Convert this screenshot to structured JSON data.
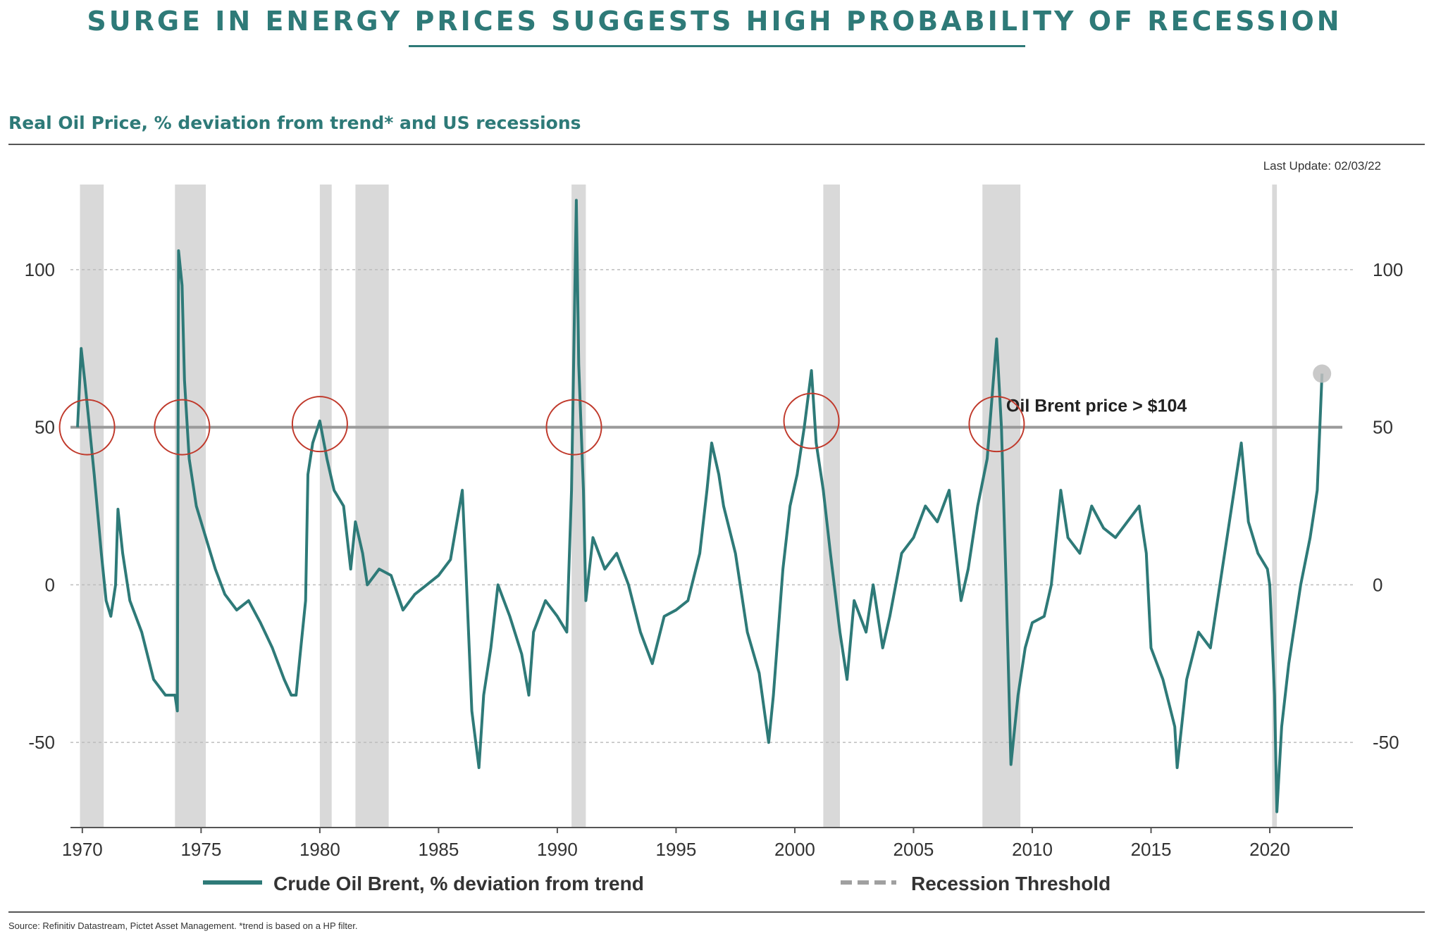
{
  "header": {
    "title": "SURGE IN ENERGY PRICES SUGGESTS HIGH PROBABILITY OF RECESSION",
    "subtitle": "Real Oil Price, % deviation from trend* and US recessions",
    "last_update": "Last Update: 02/03/22"
  },
  "footer": {
    "source": "Source: Refinitiv Datastream, Pictet Asset Management. *trend is based on a HP filter."
  },
  "colors": {
    "series": "#2e7a78",
    "recession_band": "#d9d9d9",
    "threshold": "#9a9a9a",
    "circle": "#c0392b",
    "grid": "#bdbdbd"
  },
  "chart_data": {
    "type": "line",
    "title": "Real Oil Price, % deviation from trend* and US recessions",
    "xlabel": "",
    "ylabel": "",
    "xlim": [
      1969.5,
      2023.5
    ],
    "ylim": [
      -77,
      127
    ],
    "x_ticks": [
      1970,
      1975,
      1980,
      1985,
      1990,
      1995,
      2000,
      2005,
      2010,
      2015,
      2020
    ],
    "y_ticks": [
      100,
      50,
      0,
      -50
    ],
    "gridlines": [
      100,
      0,
      -50
    ],
    "threshold": {
      "value": 50,
      "label": "Oil Brent price > $104"
    },
    "legend": {
      "placement": "bottom",
      "series_label": "Crude Oil Brent, % deviation from trend",
      "threshold_label": "Recession Threshold"
    },
    "recessions": [
      [
        1969.9,
        1970.9
      ],
      [
        1973.9,
        1975.2
      ],
      [
        1980.0,
        1980.5
      ],
      [
        1981.5,
        1982.9
      ],
      [
        1990.6,
        1991.2
      ],
      [
        2001.2,
        2001.9
      ],
      [
        2007.9,
        2009.5
      ],
      [
        2020.1,
        2020.3
      ]
    ],
    "circles": [
      {
        "x": 1970.2,
        "y": 50
      },
      {
        "x": 1974.2,
        "y": 50
      },
      {
        "x": 1980.0,
        "y": 51
      },
      {
        "x": 1990.7,
        "y": 50
      },
      {
        "x": 2000.7,
        "y": 52
      },
      {
        "x": 2008.5,
        "y": 51
      }
    ],
    "end_marker": {
      "x": 2022.2,
      "y": 67
    },
    "series": [
      {
        "name": "Crude Oil Brent, % deviation from trend",
        "points": [
          [
            1969.8,
            50
          ],
          [
            1969.95,
            75
          ],
          [
            1970.1,
            65
          ],
          [
            1970.3,
            50
          ],
          [
            1970.5,
            35
          ],
          [
            1970.8,
            10
          ],
          [
            1971.0,
            -5
          ],
          [
            1971.2,
            -10
          ],
          [
            1971.4,
            0
          ],
          [
            1971.5,
            24
          ],
          [
            1971.7,
            10
          ],
          [
            1972.0,
            -5
          ],
          [
            1972.5,
            -15
          ],
          [
            1973.0,
            -30
          ],
          [
            1973.5,
            -35
          ],
          [
            1973.9,
            -35
          ],
          [
            1974.0,
            -40
          ],
          [
            1974.05,
            106
          ],
          [
            1974.2,
            95
          ],
          [
            1974.3,
            65
          ],
          [
            1974.5,
            40
          ],
          [
            1974.8,
            25
          ],
          [
            1975.2,
            15
          ],
          [
            1975.6,
            5
          ],
          [
            1976.0,
            -3
          ],
          [
            1976.5,
            -8
          ],
          [
            1977.0,
            -5
          ],
          [
            1977.5,
            -12
          ],
          [
            1978.0,
            -20
          ],
          [
            1978.5,
            -30
          ],
          [
            1978.8,
            -35
          ],
          [
            1979.0,
            -35
          ],
          [
            1979.2,
            -20
          ],
          [
            1979.4,
            -5
          ],
          [
            1979.5,
            35
          ],
          [
            1979.7,
            45
          ],
          [
            1980.0,
            52
          ],
          [
            1980.3,
            40
          ],
          [
            1980.6,
            30
          ],
          [
            1981.0,
            25
          ],
          [
            1981.3,
            5
          ],
          [
            1981.5,
            20
          ],
          [
            1981.8,
            10
          ],
          [
            1982.0,
            0
          ],
          [
            1982.5,
            5
          ],
          [
            1983.0,
            3
          ],
          [
            1983.5,
            -8
          ],
          [
            1984.0,
            -3
          ],
          [
            1984.5,
            0
          ],
          [
            1985.0,
            3
          ],
          [
            1985.5,
            8
          ],
          [
            1986.0,
            30
          ],
          [
            1986.15,
            5
          ],
          [
            1986.4,
            -40
          ],
          [
            1986.7,
            -58
          ],
          [
            1986.9,
            -35
          ],
          [
            1987.2,
            -20
          ],
          [
            1987.5,
            0
          ],
          [
            1988.0,
            -10
          ],
          [
            1988.5,
            -22
          ],
          [
            1988.8,
            -35
          ],
          [
            1989.0,
            -15
          ],
          [
            1989.5,
            -5
          ],
          [
            1990.0,
            -10
          ],
          [
            1990.4,
            -15
          ],
          [
            1990.6,
            30
          ],
          [
            1990.8,
            122
          ],
          [
            1990.9,
            70
          ],
          [
            1991.1,
            30
          ],
          [
            1991.2,
            -5
          ],
          [
            1991.5,
            15
          ],
          [
            1992.0,
            5
          ],
          [
            1992.5,
            10
          ],
          [
            1993.0,
            0
          ],
          [
            1993.5,
            -15
          ],
          [
            1994.0,
            -25
          ],
          [
            1994.5,
            -10
          ],
          [
            1995.0,
            -8
          ],
          [
            1995.5,
            -5
          ],
          [
            1996.0,
            10
          ],
          [
            1996.3,
            30
          ],
          [
            1996.5,
            45
          ],
          [
            1996.8,
            35
          ],
          [
            1997.0,
            25
          ],
          [
            1997.5,
            10
          ],
          [
            1998.0,
            -15
          ],
          [
            1998.5,
            -28
          ],
          [
            1998.9,
            -50
          ],
          [
            1999.1,
            -35
          ],
          [
            1999.5,
            5
          ],
          [
            1999.8,
            25
          ],
          [
            2000.1,
            35
          ],
          [
            2000.4,
            50
          ],
          [
            2000.7,
            68
          ],
          [
            2000.9,
            45
          ],
          [
            2001.2,
            30
          ],
          [
            2001.5,
            10
          ],
          [
            2001.9,
            -15
          ],
          [
            2002.2,
            -30
          ],
          [
            2002.5,
            -5
          ],
          [
            2003.0,
            -15
          ],
          [
            2003.3,
            0
          ],
          [
            2003.7,
            -20
          ],
          [
            2004.0,
            -10
          ],
          [
            2004.5,
            10
          ],
          [
            2005.0,
            15
          ],
          [
            2005.5,
            25
          ],
          [
            2006.0,
            20
          ],
          [
            2006.5,
            30
          ],
          [
            2007.0,
            -5
          ],
          [
            2007.3,
            5
          ],
          [
            2007.7,
            25
          ],
          [
            2008.1,
            40
          ],
          [
            2008.5,
            78
          ],
          [
            2008.7,
            50
          ],
          [
            2008.9,
            0
          ],
          [
            2009.1,
            -57
          ],
          [
            2009.4,
            -35
          ],
          [
            2009.7,
            -20
          ],
          [
            2010.0,
            -12
          ],
          [
            2010.5,
            -10
          ],
          [
            2010.8,
            0
          ],
          [
            2011.2,
            30
          ],
          [
            2011.5,
            15
          ],
          [
            2012.0,
            10
          ],
          [
            2012.5,
            25
          ],
          [
            2013.0,
            18
          ],
          [
            2013.5,
            15
          ],
          [
            2014.0,
            20
          ],
          [
            2014.5,
            25
          ],
          [
            2014.8,
            10
          ],
          [
            2015.0,
            -20
          ],
          [
            2015.5,
            -30
          ],
          [
            2016.0,
            -45
          ],
          [
            2016.1,
            -58
          ],
          [
            2016.5,
            -30
          ],
          [
            2017.0,
            -15
          ],
          [
            2017.5,
            -20
          ],
          [
            2018.0,
            5
          ],
          [
            2018.5,
            30
          ],
          [
            2018.8,
            45
          ],
          [
            2019.1,
            20
          ],
          [
            2019.5,
            10
          ],
          [
            2019.9,
            5
          ],
          [
            2020.0,
            0
          ],
          [
            2020.2,
            -35
          ],
          [
            2020.3,
            -72
          ],
          [
            2020.5,
            -45
          ],
          [
            2020.8,
            -25
          ],
          [
            2021.0,
            -15
          ],
          [
            2021.3,
            0
          ],
          [
            2021.7,
            15
          ],
          [
            2021.9,
            25
          ],
          [
            2022.0,
            30
          ],
          [
            2022.2,
            67
          ]
        ]
      }
    ]
  }
}
